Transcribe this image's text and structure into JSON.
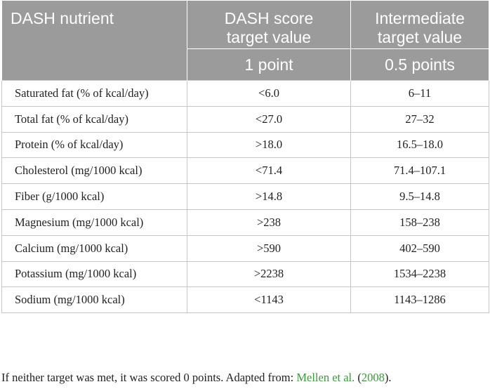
{
  "header": {
    "col0": "DASH nutrient",
    "col1_line1": "DASH score",
    "col1_line2": "target value",
    "col2_line1": "Intermediate",
    "col2_line2": "target value",
    "col1_points": "1 point",
    "col2_points": "0.5 points"
  },
  "rows": [
    {
      "nutrient": "Saturated fat (% of kcal/day)",
      "target": "<6.0",
      "intermediate": "6–11"
    },
    {
      "nutrient": "Total fat (% of kcal/day)",
      "target": "<27.0",
      "intermediate": "27–32"
    },
    {
      "nutrient": "Protein (% of kcal/day)",
      "target": ">18.0",
      "intermediate": "16.5–18.0"
    },
    {
      "nutrient": "Cholesterol (mg/1000 kcal)",
      "target": "<71.4",
      "intermediate": "71.4–107.1"
    },
    {
      "nutrient": "Fiber (g/1000 kcal)",
      "target": ">14.8",
      "intermediate": "9.5–14.8"
    },
    {
      "nutrient": "Magnesium (mg/1000 kcal)",
      "target": ">238",
      "intermediate": "158–238"
    },
    {
      "nutrient": "Calcium (mg/1000 kcal)",
      "target": ">590",
      "intermediate": "402–590"
    },
    {
      "nutrient": "Potassium (mg/1000 kcal)",
      "target": ">2238",
      "intermediate": "1534–2238"
    },
    {
      "nutrient": "Sodium (mg/1000 kcal)",
      "target": "<1143",
      "intermediate": "1143–1286"
    }
  ],
  "footnote": {
    "text_before": "If neither target was met, it was scored 0 points. Adapted from: ",
    "author_link": "Mellen et al.",
    "paren_open": " (",
    "year_link": "2008",
    "paren_close": ")."
  },
  "colors": {
    "header_bg": "#9b9b9b",
    "header_text": "#ffffff",
    "link": "#3a9a3a",
    "border": "#c6c6c6"
  }
}
